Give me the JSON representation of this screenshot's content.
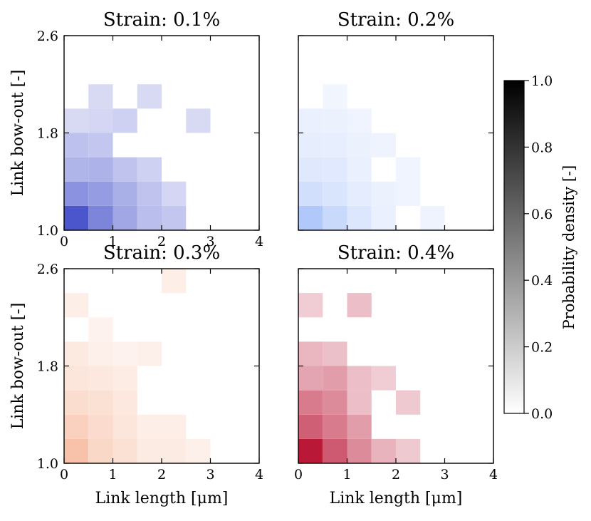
{
  "chart_data": {
    "type": "heatmap",
    "colorbar": {
      "label": "Probability density [-]",
      "min": 0.0,
      "max": 1.0,
      "ticks": [
        "0.0",
        "0.2",
        "0.4",
        "0.6",
        "0.8",
        "1.0"
      ],
      "colormap": "white-to-black"
    },
    "panels": [
      {
        "title": "Strain: 0.1%",
        "base_color": "#1a28c0",
        "xlabel": "",
        "ylabel": "Link bow-out [-]",
        "xlim": [
          0,
          4
        ],
        "ylim": [
          1.0,
          2.6
        ],
        "xticks": [
          "0",
          "1",
          "2",
          "3",
          "4"
        ],
        "yticks": [
          "1.0",
          "1.8",
          "2.6"
        ],
        "cell_width": 0.5,
        "cell_height": 0.2,
        "cells": [
          {
            "x": 0.0,
            "y": 1.0,
            "v": 0.85
          },
          {
            "x": 0.5,
            "y": 1.0,
            "v": 0.6
          },
          {
            "x": 1.0,
            "y": 1.0,
            "v": 0.42
          },
          {
            "x": 1.5,
            "y": 1.0,
            "v": 0.3
          },
          {
            "x": 2.0,
            "y": 1.0,
            "v": 0.25
          },
          {
            "x": 0.0,
            "y": 1.2,
            "v": 0.53
          },
          {
            "x": 0.5,
            "y": 1.2,
            "v": 0.48
          },
          {
            "x": 1.0,
            "y": 1.2,
            "v": 0.38
          },
          {
            "x": 1.5,
            "y": 1.2,
            "v": 0.27
          },
          {
            "x": 2.0,
            "y": 1.2,
            "v": 0.17
          },
          {
            "x": 0.0,
            "y": 1.4,
            "v": 0.35
          },
          {
            "x": 0.5,
            "y": 1.4,
            "v": 0.36
          },
          {
            "x": 1.0,
            "y": 1.4,
            "v": 0.27
          },
          {
            "x": 1.5,
            "y": 1.4,
            "v": 0.2
          },
          {
            "x": 0.0,
            "y": 1.6,
            "v": 0.28
          },
          {
            "x": 0.5,
            "y": 1.6,
            "v": 0.25
          },
          {
            "x": 0.0,
            "y": 1.8,
            "v": 0.15
          },
          {
            "x": 0.5,
            "y": 1.8,
            "v": 0.17
          },
          {
            "x": 1.0,
            "y": 1.8,
            "v": 0.2
          },
          {
            "x": 2.5,
            "y": 1.8,
            "v": 0.15
          },
          {
            "x": 0.5,
            "y": 2.0,
            "v": 0.15
          },
          {
            "x": 1.5,
            "y": 2.0,
            "v": 0.15
          }
        ]
      },
      {
        "title": "Strain: 0.2%",
        "base_color": "#5d8cf5",
        "xlabel": "",
        "ylabel": "",
        "xlim": [
          0,
          4
        ],
        "ylim": [
          1.0,
          2.6
        ],
        "xticks": [],
        "yticks": [],
        "cell_width": 0.5,
        "cell_height": 0.2,
        "cells": [
          {
            "x": 0.0,
            "y": 1.0,
            "v": 0.5
          },
          {
            "x": 0.5,
            "y": 1.0,
            "v": 0.33
          },
          {
            "x": 1.0,
            "y": 1.0,
            "v": 0.2
          },
          {
            "x": 1.5,
            "y": 1.0,
            "v": 0.1
          },
          {
            "x": 2.5,
            "y": 1.0,
            "v": 0.07
          },
          {
            "x": 0.0,
            "y": 1.2,
            "v": 0.28
          },
          {
            "x": 0.5,
            "y": 1.2,
            "v": 0.22
          },
          {
            "x": 1.0,
            "y": 1.2,
            "v": 0.14
          },
          {
            "x": 1.5,
            "y": 1.2,
            "v": 0.09
          },
          {
            "x": 2.0,
            "y": 1.2,
            "v": 0.06
          },
          {
            "x": 0.0,
            "y": 1.4,
            "v": 0.18
          },
          {
            "x": 0.5,
            "y": 1.4,
            "v": 0.17
          },
          {
            "x": 1.0,
            "y": 1.4,
            "v": 0.1
          },
          {
            "x": 2.0,
            "y": 1.4,
            "v": 0.06
          },
          {
            "x": 0.0,
            "y": 1.6,
            "v": 0.13
          },
          {
            "x": 0.5,
            "y": 1.6,
            "v": 0.12
          },
          {
            "x": 1.0,
            "y": 1.6,
            "v": 0.09
          },
          {
            "x": 1.5,
            "y": 1.6,
            "v": 0.07
          },
          {
            "x": 0.0,
            "y": 1.8,
            "v": 0.1
          },
          {
            "x": 0.5,
            "y": 1.8,
            "v": 0.09
          },
          {
            "x": 1.0,
            "y": 1.8,
            "v": 0.06
          },
          {
            "x": 0.5,
            "y": 2.0,
            "v": 0.05
          }
        ]
      },
      {
        "title": "Strain: 0.3%",
        "base_color": "#f08a5a",
        "xlabel": "Link length [μm]",
        "ylabel": "Link bow-out [-]",
        "xlim": [
          0,
          4
        ],
        "ylim": [
          1.0,
          2.6
        ],
        "xticks": [
          "0",
          "1",
          "2",
          "3",
          "4"
        ],
        "yticks": [
          "1.0",
          "1.8",
          "2.6"
        ],
        "cell_width": 0.5,
        "cell_height": 0.2,
        "cells": [
          {
            "x": 0.0,
            "y": 1.0,
            "v": 0.55
          },
          {
            "x": 0.5,
            "y": 1.0,
            "v": 0.33
          },
          {
            "x": 1.0,
            "y": 1.0,
            "v": 0.25
          },
          {
            "x": 1.5,
            "y": 1.0,
            "v": 0.15
          },
          {
            "x": 2.0,
            "y": 1.0,
            "v": 0.15
          },
          {
            "x": 2.5,
            "y": 1.0,
            "v": 0.1
          },
          {
            "x": 0.0,
            "y": 1.2,
            "v": 0.4
          },
          {
            "x": 0.5,
            "y": 1.2,
            "v": 0.3
          },
          {
            "x": 1.0,
            "y": 1.2,
            "v": 0.2
          },
          {
            "x": 1.5,
            "y": 1.2,
            "v": 0.12
          },
          {
            "x": 2.0,
            "y": 1.2,
            "v": 0.12
          },
          {
            "x": 0.0,
            "y": 1.4,
            "v": 0.28
          },
          {
            "x": 0.5,
            "y": 1.4,
            "v": 0.25
          },
          {
            "x": 1.0,
            "y": 1.4,
            "v": 0.18
          },
          {
            "x": 0.0,
            "y": 1.6,
            "v": 0.2
          },
          {
            "x": 0.5,
            "y": 1.6,
            "v": 0.18
          },
          {
            "x": 1.0,
            "y": 1.6,
            "v": 0.14
          },
          {
            "x": 0.0,
            "y": 1.8,
            "v": 0.16
          },
          {
            "x": 0.5,
            "y": 1.8,
            "v": 0.1
          },
          {
            "x": 1.0,
            "y": 1.8,
            "v": 0.08
          },
          {
            "x": 1.5,
            "y": 1.8,
            "v": 0.1
          },
          {
            "x": 0.5,
            "y": 2.0,
            "v": 0.08
          },
          {
            "x": 0.0,
            "y": 2.2,
            "v": 0.12
          },
          {
            "x": 2.0,
            "y": 2.4,
            "v": 0.12
          }
        ]
      },
      {
        "title": "Strain: 0.4%",
        "base_color": "#b40426",
        "xlabel": "Link length [μm]",
        "ylabel": "",
        "xlim": [
          0,
          4
        ],
        "ylim": [
          1.0,
          2.6
        ],
        "xticks": [
          "0",
          "1",
          "2",
          "3",
          "4"
        ],
        "yticks": [],
        "cell_width": 0.5,
        "cell_height": 0.2,
        "cells": [
          {
            "x": 0.0,
            "y": 1.0,
            "v": 1.0
          },
          {
            "x": 0.5,
            "y": 1.0,
            "v": 0.7
          },
          {
            "x": 1.0,
            "y": 1.0,
            "v": 0.48
          },
          {
            "x": 1.5,
            "y": 1.0,
            "v": 0.3
          },
          {
            "x": 2.0,
            "y": 1.0,
            "v": 0.2
          },
          {
            "x": 0.0,
            "y": 1.2,
            "v": 0.68
          },
          {
            "x": 0.5,
            "y": 1.2,
            "v": 0.55
          },
          {
            "x": 1.0,
            "y": 1.2,
            "v": 0.4
          },
          {
            "x": 0.0,
            "y": 1.4,
            "v": 0.55
          },
          {
            "x": 0.5,
            "y": 1.4,
            "v": 0.48
          },
          {
            "x": 1.0,
            "y": 1.4,
            "v": 0.25
          },
          {
            "x": 2.0,
            "y": 1.4,
            "v": 0.2
          },
          {
            "x": 0.0,
            "y": 1.6,
            "v": 0.36
          },
          {
            "x": 0.5,
            "y": 1.6,
            "v": 0.4
          },
          {
            "x": 1.0,
            "y": 1.6,
            "v": 0.25
          },
          {
            "x": 1.5,
            "y": 1.6,
            "v": 0.18
          },
          {
            "x": 0.0,
            "y": 1.8,
            "v": 0.28
          },
          {
            "x": 0.5,
            "y": 1.8,
            "v": 0.24
          },
          {
            "x": 0.0,
            "y": 2.2,
            "v": 0.18
          },
          {
            "x": 1.0,
            "y": 2.2,
            "v": 0.25
          }
        ]
      }
    ]
  }
}
